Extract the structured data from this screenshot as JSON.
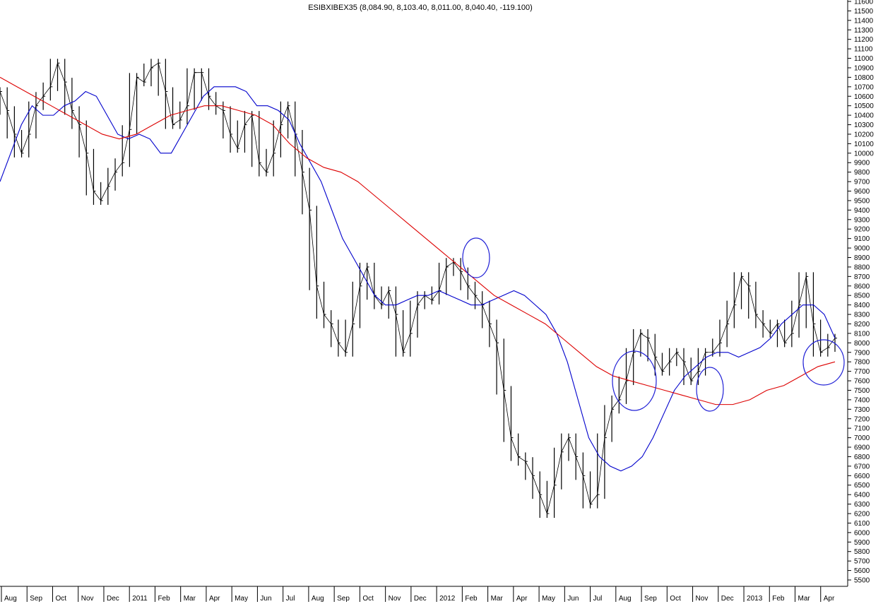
{
  "chart_data": {
    "type": "line",
    "title": "ESIBXIBEX35 (8,084.90, 8,103.40, 8,011.00, 8,040.40, -119.100)",
    "xlabel": "",
    "ylabel": "",
    "ylim": [
      5500,
      11600
    ],
    "y_ticks": [
      5500,
      5600,
      5700,
      5800,
      5900,
      6000,
      6100,
      6200,
      6300,
      6400,
      6500,
      6600,
      6700,
      6800,
      6900,
      7000,
      7100,
      7200,
      7300,
      7400,
      7500,
      7600,
      7700,
      7800,
      7900,
      8000,
      8100,
      8200,
      8300,
      8400,
      8500,
      8600,
      8700,
      8800,
      8900,
      9000,
      9100,
      9200,
      9300,
      9400,
      9500,
      9600,
      9700,
      9800,
      9900,
      10000,
      10100,
      10200,
      10300,
      10400,
      10500,
      10600,
      10700,
      10800,
      10900,
      11000,
      11100,
      11200,
      11300,
      11400,
      11500,
      11600
    ],
    "x_ticks": [
      "Aug",
      "Sep",
      "Oct",
      "Nov",
      "Dec",
      "2011",
      "Feb",
      "Mar",
      "Apr",
      "May",
      "Jun",
      "Jul",
      "Aug",
      "Sep",
      "Oct",
      "Nov",
      "Dec",
      "2012",
      "Feb",
      "Mar",
      "Apr",
      "May",
      "Jun",
      "Jul",
      "Aug",
      "Sep",
      "Oct",
      "Nov",
      "Dec",
      "2013",
      "Feb",
      "Mar",
      "Apr"
    ],
    "grid": false,
    "series": [
      {
        "values": [
          10650,
          10450,
          10200,
          10000,
          10200,
          10500,
          10600,
          10700,
          10950,
          10750,
          10450,
          10300,
          10000,
          9600,
          9500,
          9650,
          9800,
          9900,
          10250,
          10800,
          10750,
          10900,
          10950,
          10650,
          10300,
          10350,
          10500,
          10850,
          10850,
          10600,
          10500,
          10450,
          10200,
          10050,
          10300,
          10400,
          9900,
          9800,
          10000,
          10300,
          10500,
          10200,
          9800,
          9400,
          8600,
          8300,
          8200,
          8000,
          7900,
          8200,
          8600,
          8800,
          8500,
          8400,
          8550,
          8300,
          7900,
          8100,
          8400,
          8500,
          8450,
          8550,
          8800,
          8850,
          8750,
          8600,
          8500,
          8400,
          8200,
          8000,
          7500,
          7000,
          6800,
          6750,
          6600,
          6400,
          6200,
          6500,
          6850,
          7000,
          6800,
          6600,
          6300,
          6400,
          7000,
          7300,
          7400,
          7600,
          7900,
          8100,
          8050,
          7850,
          7700,
          7800,
          7900,
          7800,
          7600,
          7700,
          7900,
          7900,
          8000,
          8200,
          8400,
          8700,
          8600,
          8300,
          8200,
          8100,
          8200,
          8000,
          8100,
          8400,
          8700,
          8200,
          7900,
          7950,
          8050
        ]
      },
      {
        "values": [
          9700,
          10000,
          10300,
          10500,
          10400,
          10400,
          10500,
          10550,
          10650,
          10600,
          10400,
          10200,
          10150,
          10200,
          10150,
          10000,
          10000,
          10200,
          10400,
          10600,
          10700,
          10700,
          10700,
          10650,
          10500,
          10500,
          10450,
          10350,
          10100,
          9900,
          9700,
          9400,
          9100,
          8900,
          8700,
          8500,
          8400,
          8400,
          8450,
          8500,
          8500,
          8550,
          8500,
          8450,
          8400,
          8400,
          8450,
          8500,
          8550,
          8500,
          8400,
          8300,
          8100,
          7800,
          7400,
          7000,
          6800,
          6700,
          6650,
          6700,
          6800,
          7000,
          7250,
          7500,
          7650,
          7750,
          7850,
          7900,
          7900,
          7850,
          7900,
          7950,
          8050,
          8200,
          8300,
          8400,
          8400,
          8300,
          8050
        ]
      },
      {
        "values": [
          10800,
          10700,
          10600,
          10500,
          10400,
          10300,
          10200,
          10150,
          10200,
          10300,
          10400,
          10450,
          10500,
          10500,
          10450,
          10400,
          10300,
          10100,
          9950,
          9850,
          9800,
          9700,
          9550,
          9400,
          9250,
          9100,
          8950,
          8800,
          8650,
          8500,
          8400,
          8300,
          8200,
          8050,
          7900,
          7750,
          7650,
          7600,
          7550,
          7500,
          7450,
          7400,
          7350,
          7350,
          7400,
          7500,
          7550,
          7650,
          7750,
          7800
        ]
      }
    ]
  }
}
